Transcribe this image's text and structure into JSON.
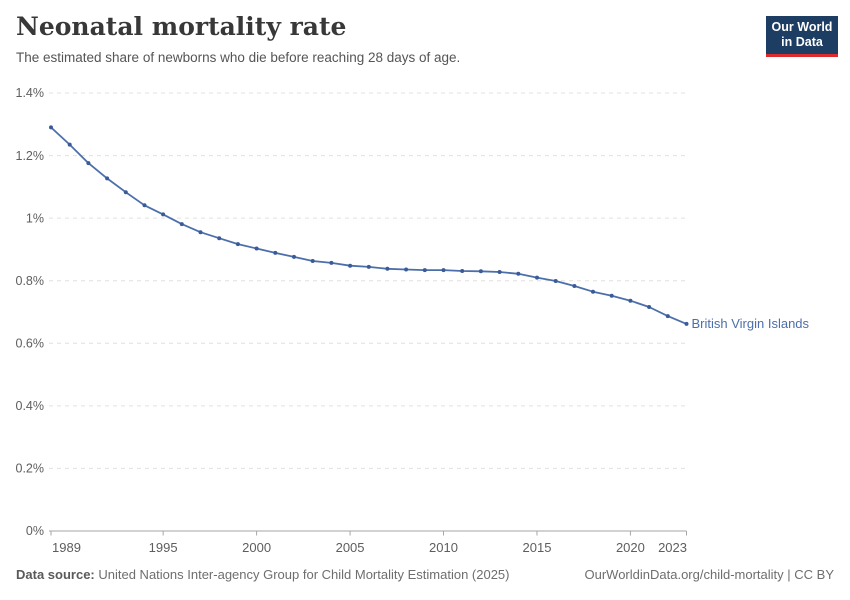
{
  "header": {
    "title": "Neonatal mortality rate",
    "subtitle": "The estimated share of newborns who die before reaching 28 days of age.",
    "logo": {
      "line1": "Our World",
      "line2": "in Data"
    }
  },
  "footer": {
    "source_label": "Data source:",
    "source_text": " United Nations Inter-agency Group for Child Mortality Estimation (2025)",
    "rights": "OurWorldinData.org/child-mortality | CC BY"
  },
  "chart_data": {
    "type": "line",
    "title": "Neonatal mortality rate",
    "entity": "British Virgin Islands",
    "unit": "%",
    "x": [
      1989,
      1990,
      1991,
      1992,
      1993,
      1994,
      1995,
      1996,
      1997,
      1998,
      1999,
      2000,
      2001,
      2002,
      2003,
      2004,
      2005,
      2006,
      2007,
      2008,
      2009,
      2010,
      2011,
      2012,
      2013,
      2014,
      2015,
      2016,
      2017,
      2018,
      2019,
      2020,
      2021,
      2022,
      2023
    ],
    "series": [
      {
        "name": "British Virgin Islands",
        "values": [
          1.29,
          1.235,
          1.176,
          1.127,
          1.083,
          1.041,
          1.012,
          0.981,
          0.955,
          0.936,
          0.917,
          0.903,
          0.889,
          0.876,
          0.863,
          0.857,
          0.848,
          0.844,
          0.838,
          0.836,
          0.834,
          0.834,
          0.831,
          0.83,
          0.828,
          0.822,
          0.81,
          0.799,
          0.783,
          0.765,
          0.752,
          0.736,
          0.716,
          0.687,
          0.662
        ]
      }
    ],
    "xlabel": "",
    "ylabel": "",
    "ylim": [
      0,
      1.4
    ],
    "yticks": [
      0,
      0.2,
      0.4,
      0.6,
      0.8,
      1,
      1.2,
      1.4
    ],
    "ytick_labels": [
      "0%",
      "0.2%",
      "0.4%",
      "0.6%",
      "0.8%",
      "1%",
      "1.2%",
      "1.4%"
    ],
    "xticks": [
      1989,
      1995,
      2000,
      2005,
      2010,
      2015,
      2020,
      2023
    ],
    "grid": true,
    "legend_position": "end-of-line-label",
    "colors": {
      "line": "#4c6fab",
      "marker": "#3a5b99",
      "entity_label": "#4c6fab",
      "grid": "#e0e0e0",
      "axis": "#a6a6a6",
      "tick_text": "#5e5e5e"
    }
  }
}
